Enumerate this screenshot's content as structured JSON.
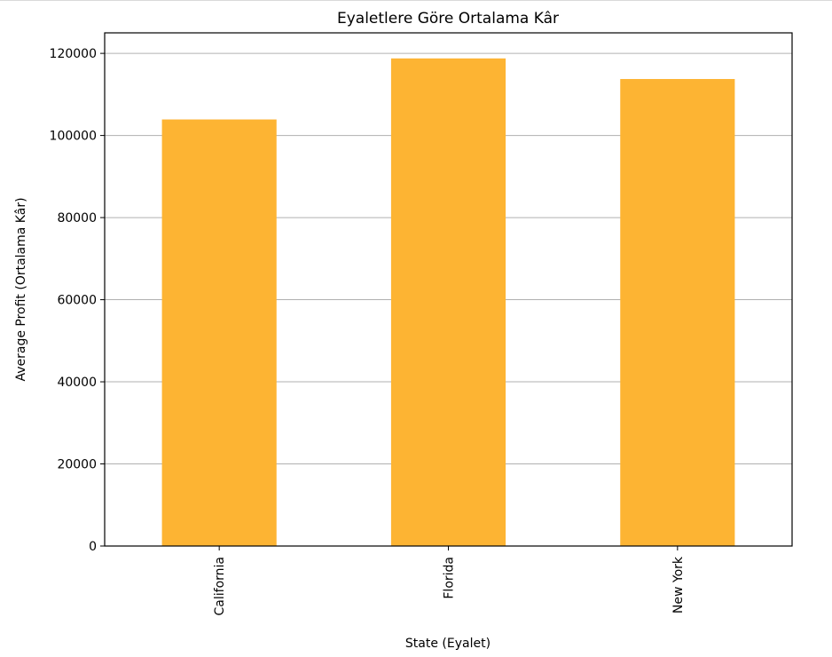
{
  "chart_data": {
    "type": "bar",
    "title": "Eyaletlere Göre Ortalama Kâr",
    "xlabel": "State (Eyalet)",
    "ylabel": "Average Profit (Ortalama Kâr)",
    "categories": [
      "California",
      "Florida",
      "New York"
    ],
    "values": [
      103905,
      118775,
      113756
    ],
    "ylim": [
      0,
      125000
    ],
    "yticks": [
      0,
      20000,
      40000,
      60000,
      80000,
      100000,
      120000
    ],
    "ytick_labels": [
      "0",
      "20000",
      "40000",
      "60000",
      "80000",
      "100000",
      "120000"
    ],
    "grid": "y-major",
    "legend": "none",
    "x_tick_rotation": "vertical",
    "bar_color": "#FDB433",
    "grid_color": "#B0B0B0"
  }
}
